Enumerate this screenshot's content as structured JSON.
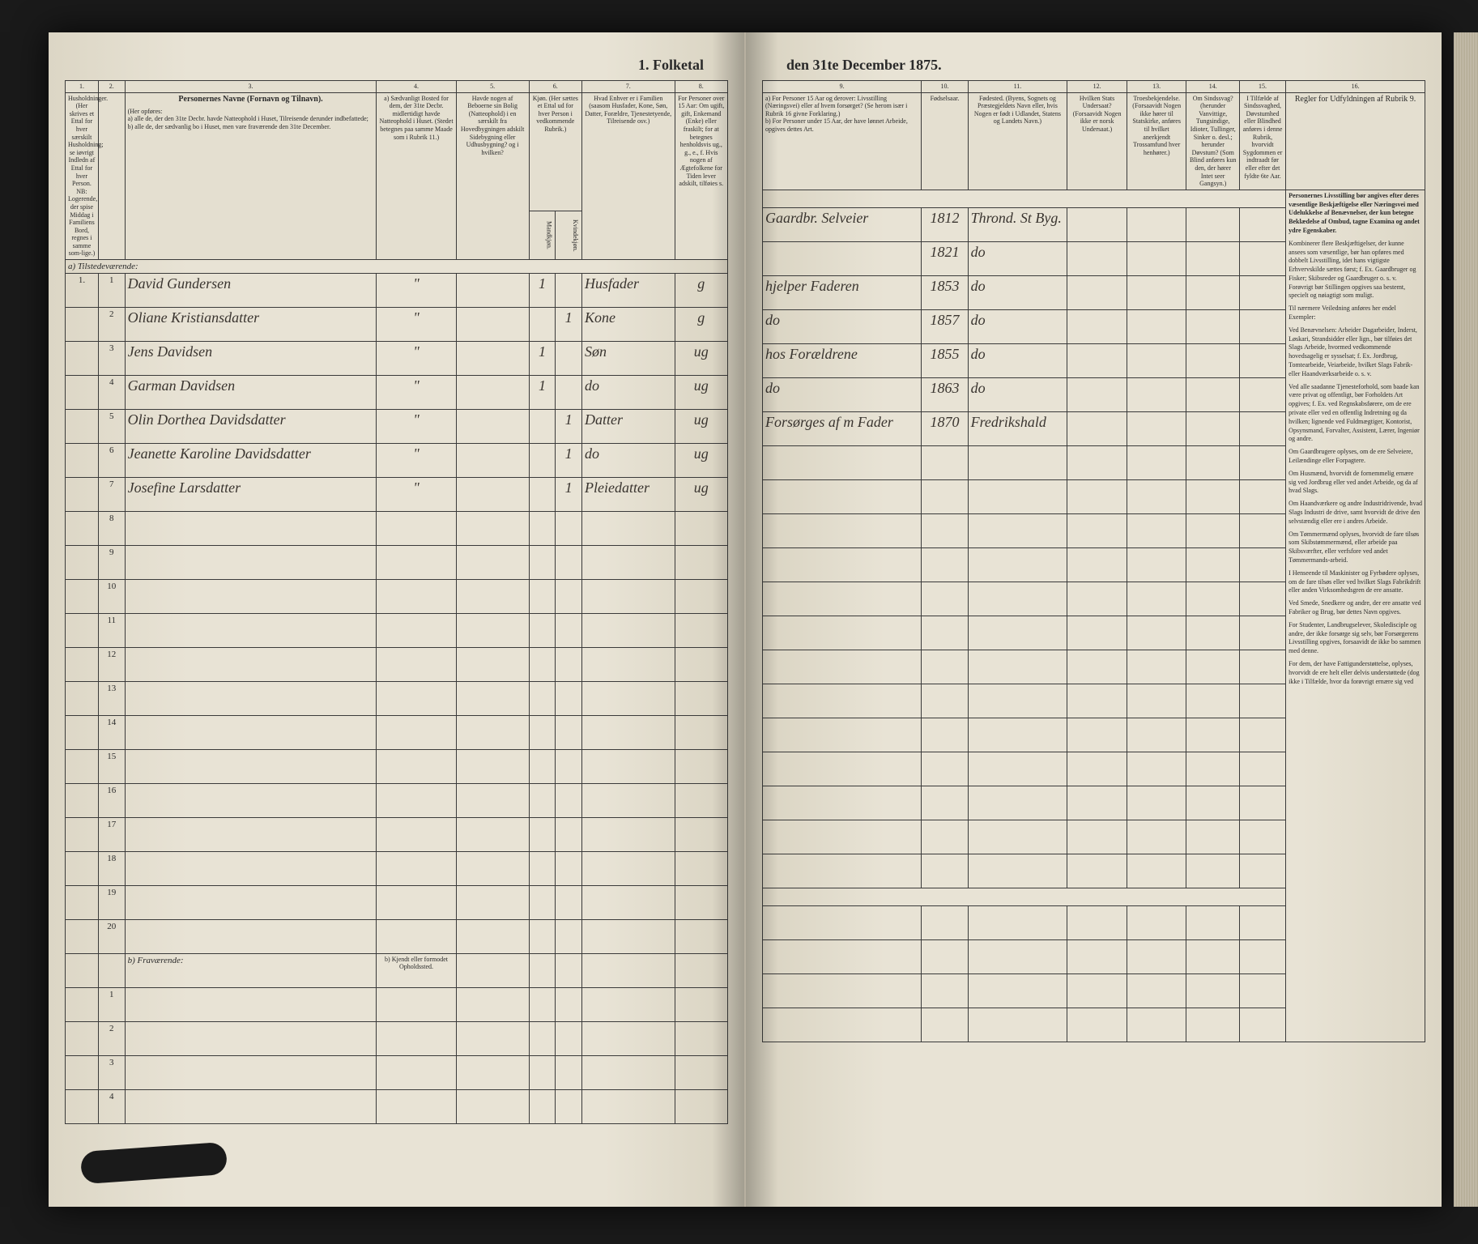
{
  "colors": {
    "page_bg": "#e8e3d5",
    "ink": "#2a2a2a",
    "handwriting": "#3a3530",
    "border": "#3a3a3a",
    "spine_shadow": "rgba(0,0,0,0.25)",
    "outer_bg": "#1a1a1a"
  },
  "title_left": "1. Folketal",
  "title_right": "den 31te December 1875.",
  "left_headers": {
    "c1_num": "1.",
    "c2_num": "2.",
    "c3_num": "3.",
    "c4_num": "4.",
    "c5_num": "5.",
    "c6_num": "6.",
    "c7_num": "7.",
    "c8_num": "8.",
    "c1": "Husholdninger. (Her skrives et Ettal for hver særskilt Husholdning; se iøvrigt Indledn af Ettal for hver Person. NB: Logerende, der spise Middag i Familiens Bord, regnes i samme som-lige.)",
    "c3_title": "Personernes Navne (Fornavn og Tilnavn).",
    "c3_body": "(Her opføres:\na) alle de, der den 31te Decbr. havde Natteophold i Huset, Tilreisende derunder indbefattede;\nb) alle de, der sædvanlig bo i Huset, men vare fraværende den 31te December.",
    "c4": "a) Sædvanligt Bosted for dem, der 31te Decbr. midlertidigt havde Natteophold i Huset. (Stedet betegnes paa samme Maade som i Rubrik 11.)",
    "c5": "Havde nogen af Beboerne sin Bolig (Natteophold) i en særskilt fra Hovedbygningen adskilt Sidebygning eller Udhusbygning? og i hvilken?",
    "c6": "Kjøn. (Her sættes et Ettal ud for hver Person i vedkommende Rubrik.)",
    "c6a": "Mandkjøn.",
    "c6b": "Kvindekjøn.",
    "c7": "Hvad Enhver er i Familien (saasom Husfader, Kone, Søn, Datter, Forældre, Tjenestetyende, Tilreisende osv.)",
    "c8": "For Personer over 15 Aar: Om ugift, gift, Enkemand (Enke) eller fraskilt; for at betegnes henholdsvis ug., g., e., f. Hvis nogen af Ægtefolkene for Tiden lever adskilt, tilføies s."
  },
  "right_headers": {
    "c9_num": "9.",
    "c10_num": "10.",
    "c11_num": "11.",
    "c12_num": "12.",
    "c13_num": "13.",
    "c14_num": "14.",
    "c15_num": "15.",
    "c16_num": "16.",
    "c9": "a) For Personer 15 Aar og derover: Livsstilling (Næringsvei) eller af hvem forsørget? (Se herom især i Rubrik 16 givne Forklaring.)\nb) For Personer under 15 Aar, der have lønnet Arbeide, opgives dettes Art.",
    "c10": "Fødselsaar.",
    "c11": "Fødested. (Byens, Sognets og Præstegjeldets Navn eller, hvis Nogen er født i Udlandet, Statens og Landets Navn.)",
    "c12": "Hvilken Stats Undersaat? (Forsaavidt Nogen ikke er norsk Undersaat.)",
    "c13": "Troesbekjendelse. (Forsaavidt Nogen ikke hører til Statskirke, anføres til hvilket anerkjendt Trossamfund hver henhører.)",
    "c14": "Om Sindssvag? (herunder Vanvittige, Tungsindige, Idioter, Tullinger, Sinker o. desl.; herunder Døvstum? (Som Blind anføres kun den, der hører Intet seer Gangsyn.)",
    "c15": "I Tilfælde af Sindssvaghed, Døvstumhed eller Blindhed anføres i denne Rubrik, hvorvidt Sygdommen er indtraadt før eller efter det fyldte 6te Aar.",
    "c16_title": "Regler for Udfyldningen af Rubrik 9."
  },
  "rows": [
    {
      "n": "1",
      "hh": "1.",
      "name": "David Gundersen",
      "c4": "\"",
      "c6a": "1",
      "c6b": "",
      "rel": "Husfader",
      "ms": "g",
      "occ": "Gaardbr. Selveier",
      "yr": "1812",
      "bp": "Thrond. St Byg."
    },
    {
      "n": "2",
      "hh": "",
      "name": "Oliane Kristiansdatter",
      "c4": "\"",
      "c6a": "",
      "c6b": "1",
      "rel": "Kone",
      "ms": "g",
      "occ": "",
      "yr": "1821",
      "bp": "do"
    },
    {
      "n": "3",
      "hh": "",
      "name": "Jens Davidsen",
      "c4": "\"",
      "c6a": "1",
      "c6b": "",
      "rel": "Søn",
      "ms": "ug",
      "occ": "hjelper Faderen",
      "yr": "1853",
      "bp": "do"
    },
    {
      "n": "4",
      "hh": "",
      "name": "Garman Davidsen",
      "c4": "\"",
      "c6a": "1",
      "c6b": "",
      "rel": "do",
      "ms": "ug",
      "occ": "do",
      "yr": "1857",
      "bp": "do"
    },
    {
      "n": "5",
      "hh": "",
      "name": "Olin Dorthea Davidsdatter",
      "c4": "\"",
      "c6a": "",
      "c6b": "1",
      "rel": "Datter",
      "ms": "ug",
      "occ": "hos Forældrene",
      "yr": "1855",
      "bp": "do"
    },
    {
      "n": "6",
      "hh": "",
      "name": "Jeanette Karoline Davidsdatter",
      "c4": "\"",
      "c6a": "",
      "c6b": "1",
      "rel": "do",
      "ms": "ug",
      "occ": "do",
      "yr": "1863",
      "bp": "do"
    },
    {
      "n": "7",
      "hh": "",
      "name": "Josefine Larsdatter",
      "c4": "\"",
      "c6a": "",
      "c6b": "1",
      "rel": "Pleiedatter",
      "ms": "ug",
      "occ": "Forsørges af m Fader",
      "yr": "1870",
      "bp": "Fredrikshald"
    }
  ],
  "empty_rows_a": [
    "8",
    "9",
    "10",
    "11",
    "12",
    "13",
    "14",
    "15",
    "16",
    "17",
    "18",
    "19",
    "20"
  ],
  "section_a": "a) Tilstedeværende:",
  "section_b": "b) Fraværende:",
  "section_b_col4": "b) Kjendt eller formodet Opholdssted.",
  "empty_rows_b": [
    "1",
    "2",
    "3",
    "4"
  ],
  "rules": {
    "title": "Personernes Livsstilling bør angives efter deres væsentlige Beskjæftigelse eller Næringsvei med Udelukkelse af Benævnelser, der kun betegne Beklædelse af Ombud, tagne Examina og andet ydre Egenskaber.",
    "p1": "Kombinerer flere Beskjæftigelser, der kunne ansees som væsentlige, bør han opføres med dobbelt Livsstilling, idet hans vigtigste Erhvervskilde sættes først; f. Ex. Gaardbruger og Fisker; Skibsreder og Gaardbruger o. s. v. Forøvrigt bør Stillingen opgives saa bestemt, specielt og nøiagtigt som muligt.",
    "p2": "Til nærmere Veiledning anføres her endel Exempler:",
    "p3": "Ved Benævnelsen: Arbeider Dagarbeider, Inderst, Løskari, Strandsidder eller lign., bør tilføies det Slags Arbeide, hvormed vedkommende hovedsagelig er sysselsat; f. Ex. Jordbrug, Tomtearbeide, Veiarbeide, hvilket Slags Fabrik- eller Haandværksarbeide o. s. v.",
    "p4": "Ved alle saadanne Tjenesteforhold, som baade kan være privat og offentligt, bør Forholdets Art opgives; f. Ex. ved Regnskabsførere, om de ere private eller ved en offentlig Indretning og da hvilken; lignende ved Fuldmægtiger, Kontorist, Opsynsmand, Forvalter, Assistent, Lærer, Ingeniør og andre.",
    "p5": "Om Gaardbrugere oplyses, om de ere Selveiere, Leilændinge eller Forpagtere.",
    "p6": "Om Husmænd, hvorvidt de fornemmelig ernære sig ved Jordbrug eller ved andet Arbeide, og da af hvad Slags.",
    "p7": "Om Haandværkere og andre Industridrivende, hvad Slags Industri de drive, samt hvorvidt de drive den selvstændig eller ere i andres Arbeide.",
    "p8": "Om Tømmermænd oplyses, hvorvidt de fare tilsøs som Skibstømmermænd, eller arbeide paa Skibsværfter, eller verfsfore ved andet Tømmermands-arbeid.",
    "p9": "I Henseende til Maskinister og Fyrbødere oplyses, om de fare tilsøs eller ved hvilket Slags Fabrikdrift eller anden Virksomhedsgren de ere ansatte.",
    "p10": "Ved Smede, Snedkere og andre, der ere ansatte ved Fabriker og Brug, bør dettes Navn opgives.",
    "p11": "For Studenter, Landbrugselever, Skoledisciple og andre, der ikke forsørge sig selv, bør Forsørgerens Livsstilling opgives, forsaavidt de ikke bo sammen med denne.",
    "p12": "For dem, der have Fattigunderstøttelse, oplyses, hvorvidt de ere helt eller delvis understøttede (dog ikke i Tilfælde, hvor da forøvrigt ernære sig ved"
  }
}
